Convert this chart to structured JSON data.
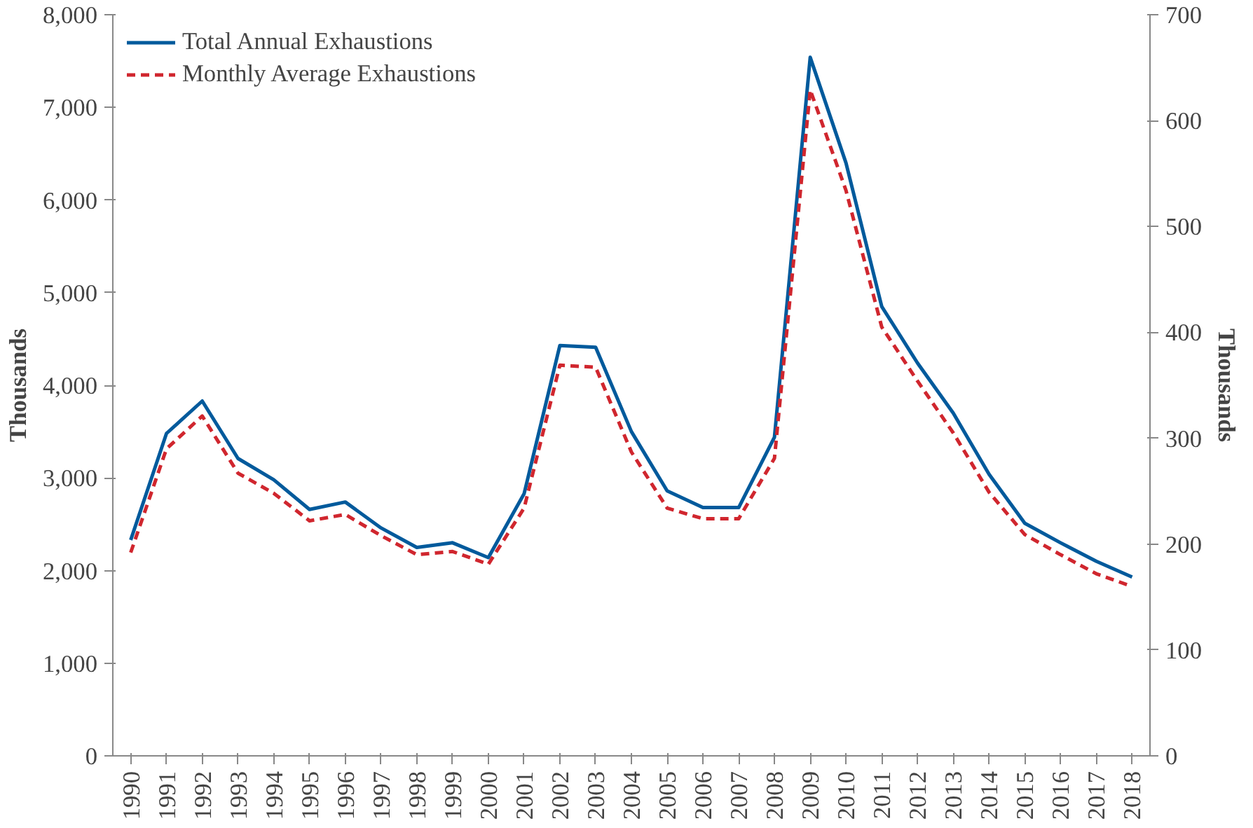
{
  "chart_data": {
    "type": "line",
    "ylabel": "Thousands",
    "y2label": "Thousands",
    "categories": [
      "1990",
      "1991",
      "1992",
      "1993",
      "1994",
      "1995",
      "1996",
      "1997",
      "1998",
      "1999",
      "2000",
      "2001",
      "2002",
      "2003",
      "2004",
      "2005",
      "2006",
      "2007",
      "2008",
      "2009",
      "2010",
      "2011",
      "2012",
      "2013",
      "2014",
      "2015",
      "2016",
      "2017",
      "2018"
    ],
    "series": [
      {
        "name": "Total Annual Exhaustions",
        "color": "#005a9c",
        "line_style": "solid",
        "values": [
          2330,
          3480,
          3830,
          3210,
          2980,
          2660,
          2740,
          2460,
          2250,
          2300,
          2140,
          2830,
          4430,
          4410,
          3500,
          2860,
          2680,
          2680,
          3440,
          7540,
          6400,
          4850,
          4240,
          3700,
          3040,
          2510,
          2300,
          2100,
          1930
        ]
      },
      {
        "name": "Monthly Average Exhaustions",
        "color": "#d0262e",
        "line_style": "dashed",
        "axis": "y2",
        "values": [
          192,
          290,
          321,
          267,
          248,
          222,
          228,
          208,
          190,
          193,
          181,
          234,
          369,
          367,
          287,
          234,
          224,
          224,
          281,
          629,
          534,
          405,
          354,
          305,
          249,
          209,
          190,
          172,
          160
        ]
      }
    ],
    "ylim": [
      0,
      8000
    ],
    "yticks": [
      {
        "value": 0,
        "label": "0"
      },
      {
        "value": 1000,
        "label": "1,000"
      },
      {
        "value": 2000,
        "label": "2,000"
      },
      {
        "value": 3000,
        "label": "3,000"
      },
      {
        "value": 4000,
        "label": "4,000"
      },
      {
        "value": 5000,
        "label": "5,000"
      },
      {
        "value": 6000,
        "label": "6,000"
      },
      {
        "value": 7000,
        "label": "7,000"
      },
      {
        "value": 8000,
        "label": "8,000"
      }
    ],
    "y2lim": [
      0,
      700
    ],
    "y2ticks": [
      0,
      100,
      200,
      300,
      400,
      500,
      600,
      700
    ],
    "legend": "top left",
    "grid": false,
    "marker": "none"
  }
}
